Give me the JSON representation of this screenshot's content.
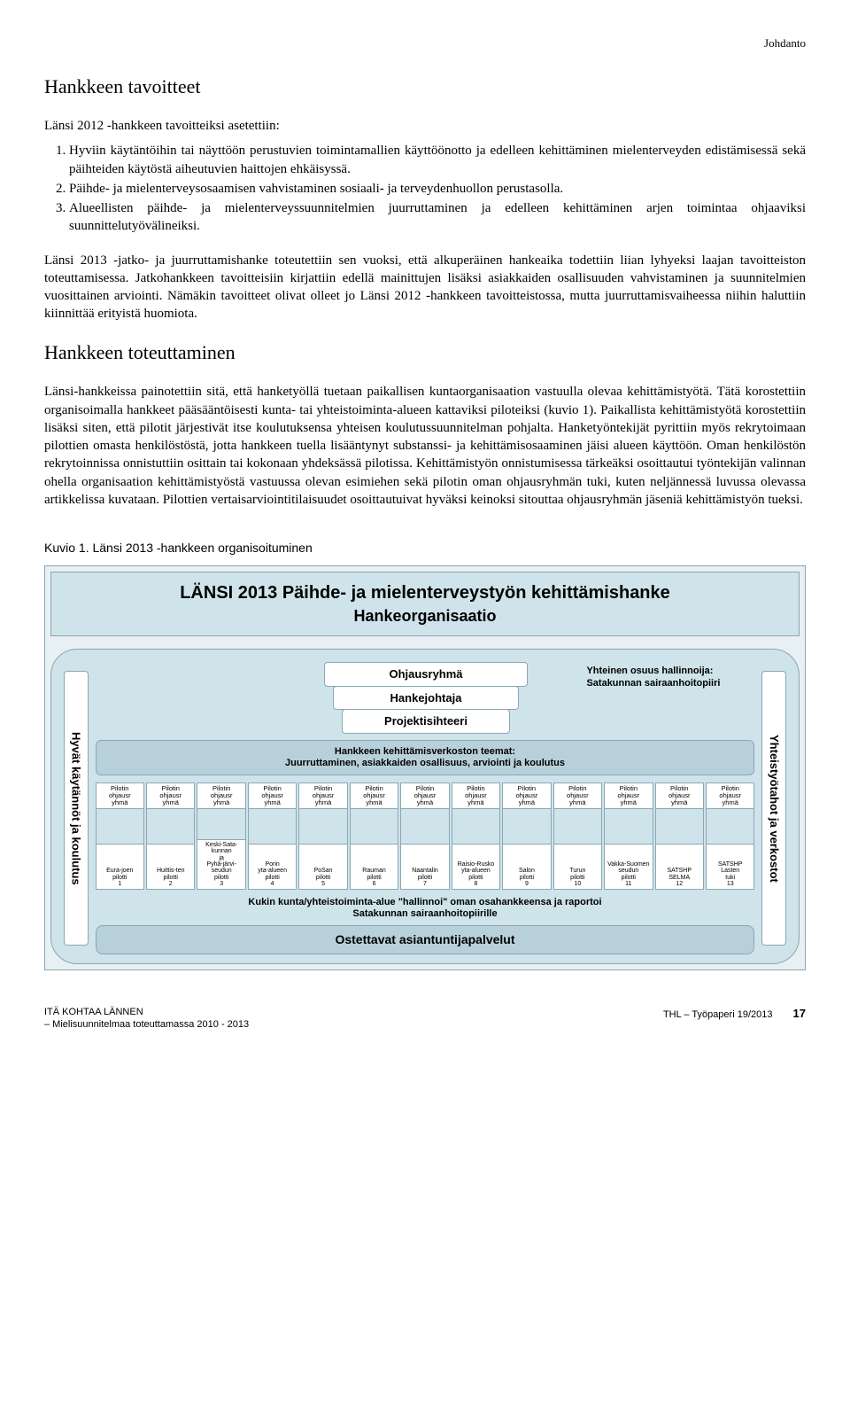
{
  "chapter_header": "Johdanto",
  "section1_title": "Hankkeen tavoitteet",
  "intro_line": "Länsi 2012 -hankkeen tavoitteiksi asetettiin:",
  "objectives": [
    "Hyviin käytäntöihin tai näyttöön perustuvien toimintamallien käyttöönotto ja edelleen kehittäminen mielenterveyden edistämisessä sekä päihteiden käytöstä aiheutuvien haittojen ehkäisyssä.",
    "Päihde- ja mielenterveysosaamisen vahvistaminen sosiaali- ja terveydenhuollon perustasolla.",
    "Alueellisten päihde- ja mielenterveyssuunnitelmien juurruttaminen ja edelleen kehittäminen arjen toimintaa ohjaaviksi suunnittelutyövälineiksi."
  ],
  "para1": "Länsi 2013 -jatko- ja juurruttamishanke toteutettiin sen vuoksi, että alkuperäinen hankeaika todettiin liian lyhyeksi laajan tavoitteiston toteuttamisessa. Jatkohankkeen tavoitteisiin kirjattiin edellä mainittujen lisäksi asiakkaiden osallisuuden vahvistaminen ja suunnitelmien vuosittainen arviointi. Nämäkin tavoitteet olivat olleet jo Länsi 2012 -hankkeen tavoitteistossa, mutta juurruttamisvaiheessa niihin haluttiin kiinnittää erityistä huomiota.",
  "section2_title": "Hankkeen toteuttaminen",
  "para2": "Länsi-hankkeissa painotettiin sitä, että hanketyöllä tuetaan paikallisen kuntaorganisaation vastuulla olevaa kehittämistyötä. Tätä korostettiin organisoimalla hankkeet pääsääntöisesti kunta- tai yhteistoiminta-alueen kattaviksi piloteiksi (kuvio 1). Paikallista kehittämistyötä korostettiin lisäksi siten, että pilotit järjestivät itse koulutuksensa yhteisen koulutussuunnitelman pohjalta. Hanketyöntekijät pyrittiin myös rekrytoimaan pilottien omasta henkilöstöstä, jotta hankkeen tuella lisääntynyt substanssi- ja kehittämisosaaminen jäisi alueen käyttöön. Oman henkilöstön rekrytoinnissa onnistuttiin osittain tai kokonaan yhdeksässä pilotissa. Kehittämistyön onnistumisessa tärkeäksi osoittautui työntekijän valinnan ohella organisaation kehittämistyöstä vastuussa olevan esimiehen sekä pilotin oman ohjausryhmän tuki, kuten neljännessä luvussa olevassa artikkelissa kuvataan. Pilottien vertaisarviointitilaisuudet osoittautuivat hyväksi keinoksi sitouttaa ohjausryhmän jäseniä kehittämistyön tueksi.",
  "figure_caption": "Kuvio 1. Länsi 2013 -hankkeen organisoituminen",
  "diagram": {
    "title_line1": "LÄNSI 2013 Päihde- ja mielenterveystyön kehittämishanke",
    "title_line2": "Hankeorganisaatio",
    "left_label": "Hyvät käytännöt ja koulutus",
    "right_label": "Yhteistyötahot ja verkostot",
    "stack": [
      "Ohjausryhmä",
      "Hankejohtaja",
      "Projektisihteeri"
    ],
    "admin_note": "Yhteinen osuus hallinnoija: Satakunnan sairaanhoitopiiri",
    "theme_line1": "Hankkeen kehittämisverkoston teemat:",
    "theme_line2": "Juurruttaminen, asiakkaiden osallisuus, arviointi ja koulutus",
    "pilot_oh_label": "Pilotin ohjausr yhmä",
    "pilots": [
      "Eura-joen pilotti 1",
      "Huittis-ten pilotti 2",
      "Keski-Sata-kunnan ja Pyhä-järvi-seudun pilotti 3",
      "Porin yta-alueen pilotti 4",
      "PoSan pilotti 5",
      "Rauman pilotti 6",
      "Naantalin pilotti 7",
      "Raisio-Rusko yta-alueen pilotti 8",
      "Salon pilotti 9",
      "Turun pilotti 10",
      "Vakka-Suomen seudun pilotti 11",
      "SATSHP SELMA 12",
      "SATSHP Lasten tuki 13"
    ],
    "bottom_note_l1": "Kukin kunta/yhteistoiminta-alue \"hallinnoi\" oman osahankkeensa ja raportoi",
    "bottom_note_l2": "Satakunnan sairaanhoitopiirille",
    "services": "Ostettavat asiantuntijapalvelut"
  },
  "footer": {
    "left_l1": "ITÄ KOHTAA LÄNNEN",
    "left_l2": "– Mielisuunnitelmaa toteuttamassa 2010 - 2013",
    "right": "THL – Työpaperi 19/2013",
    "page": "17"
  },
  "colors": {
    "outer_bg": "#e8f0f3",
    "inner_bg": "#cfe3ea",
    "bar_bg": "#b8d0da",
    "border": "#8aa7b5"
  }
}
